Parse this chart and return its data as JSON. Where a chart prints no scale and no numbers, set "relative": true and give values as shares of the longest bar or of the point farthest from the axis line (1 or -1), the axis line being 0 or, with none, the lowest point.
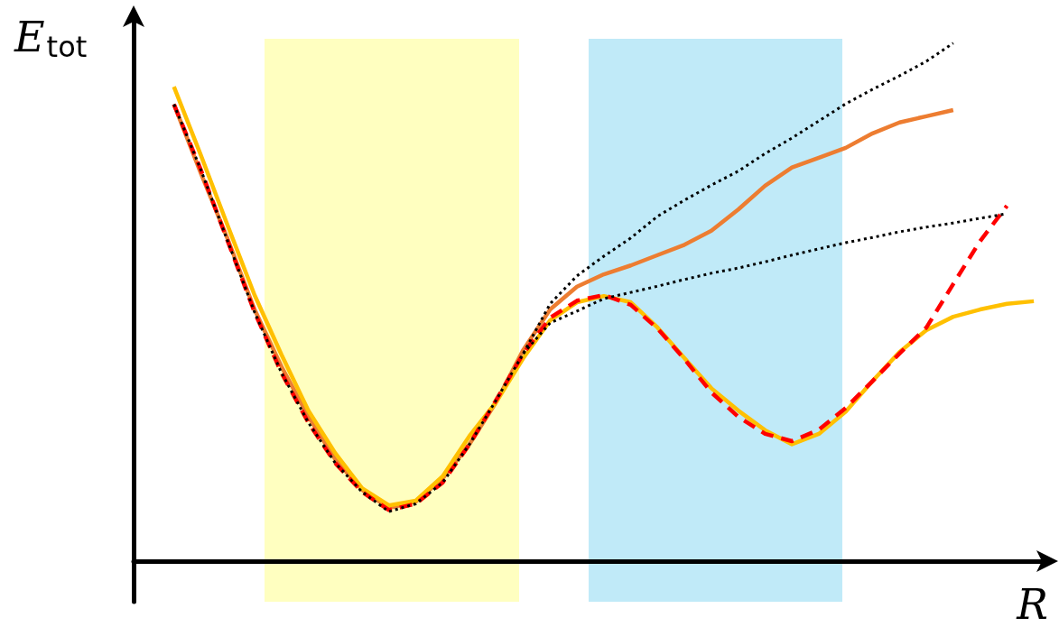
{
  "chart_data": {
    "type": "line",
    "relative": true,
    "ylabel": "E$_{tot}$",
    "xlabel": "R",
    "grid": false,
    "marker": "none",
    "categories": [
      null,
      null,
      null,
      null,
      null,
      null,
      null,
      null,
      null,
      null,
      null,
      null,
      null,
      null,
      null,
      null,
      null,
      null,
      null,
      null,
      null,
      null,
      null,
      null,
      null,
      null,
      null,
      null,
      null,
      null,
      null,
      null,
      null,
      null
    ],
    "series": [
      {
        "color": "#ed7d31",
        "line_style": "solid",
        "values": [
          null,
          0.882,
          0.749,
          0.622,
          0.486,
          0.376,
          0.28,
          0.197,
          0.138,
          0.103,
          0.115,
          0.16,
          0.226,
          0.308,
          0.408,
          0.486,
          0.53,
          0.554,
          0.571,
          0.591,
          0.611,
          0.638,
          0.679,
          0.725,
          0.76,
          0.779,
          0.798,
          0.826,
          0.847,
          0.859,
          0.871,
          null,
          null,
          null
        ]
      },
      {
        "color": "#ff0000",
        "line_style": "dashed",
        "values": [
          null,
          0.882,
          0.756,
          0.618,
          0.481,
          0.364,
          0.268,
          0.19,
          0.134,
          0.099,
          0.111,
          0.152,
          0.226,
          0.312,
          0.401,
          0.47,
          0.503,
          0.514,
          0.495,
          0.449,
          0.39,
          0.326,
          0.279,
          0.246,
          0.232,
          0.254,
          0.296,
          0.348,
          0.401,
          0.451,
          0.535,
          0.618,
          0.686,
          null
        ]
      },
      {
        "color": "#ffc000",
        "line_style": "solid",
        "values": [
          null,
          0.916,
          0.784,
          0.648,
          0.514,
          0.399,
          0.291,
          0.209,
          0.141,
          0.108,
          0.117,
          0.164,
          0.242,
          0.308,
          0.392,
          0.465,
          0.5,
          0.512,
          0.5,
          0.451,
          0.392,
          0.334,
          0.291,
          0.253,
          0.226,
          0.246,
          0.289,
          0.348,
          0.404,
          0.446,
          0.472,
          0.486,
          0.497,
          0.502
        ]
      },
      {
        "color": "#000000",
        "line_style": "dotted",
        "values": [
          null,
          0.882,
          0.756,
          0.618,
          0.481,
          0.364,
          0.268,
          0.19,
          0.134,
          0.096,
          0.111,
          0.152,
          0.226,
          0.312,
          0.401,
          0.497,
          0.551,
          0.589,
          0.624,
          0.666,
          0.697,
          0.726,
          0.753,
          0.787,
          0.817,
          0.85,
          0.883,
          0.911,
          0.937,
          0.965,
          1,
          null,
          null,
          null
        ]
      },
      {
        "color": "#000000",
        "line_style": "dotted",
        "values": [
          null,
          null,
          null,
          null,
          null,
          null,
          null,
          null,
          null,
          null,
          null,
          null,
          null,
          null,
          0.401,
          0.46,
          0.483,
          0.507,
          0.519,
          0.531,
          0.544,
          0.556,
          0.566,
          0.578,
          0.591,
          0.603,
          0.615,
          0.625,
          0.636,
          0.645,
          0.653,
          0.662,
          0.671,
          null
        ]
      }
    ]
  }
}
